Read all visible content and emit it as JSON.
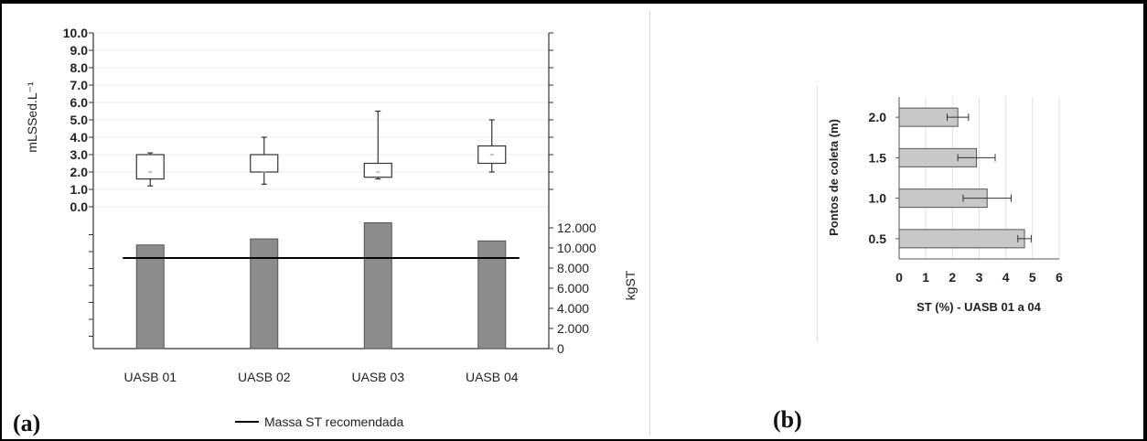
{
  "panel_labels": {
    "a": "(a)",
    "b": "(b)"
  },
  "colors": {
    "bar": "#8c8c8c",
    "box": "#ffffff",
    "line": "#000000",
    "hbar": "#c8c8c8"
  },
  "chart_data": [
    {
      "id": "a",
      "type": "bar",
      "categories": [
        "UASB 01",
        "UASB 02",
        "UASB 03",
        "UASB 04"
      ],
      "series": [
        {
          "values": [
            10300,
            10900,
            12500,
            10700
          ]
        },
        {
          "name": "Massa ST recomendada",
          "type": "line",
          "values": [
            9000,
            9000,
            9000,
            9000
          ]
        }
      ],
      "boxplot": {
        "ylabel": "mLSSed.L⁻¹",
        "ylim": [
          0,
          10
        ],
        "ticks": [
          "0.0",
          "1.0",
          "2.0",
          "3.0",
          "4.0",
          "5.0",
          "6.0",
          "7.0",
          "8.0",
          "9.0",
          "10.0"
        ],
        "boxes": [
          {
            "min": 1.2,
            "q1": 1.6,
            "median": 2.0,
            "q3": 3.0,
            "max": 3.1
          },
          {
            "min": 1.3,
            "q1": 2.0,
            "median": 2.0,
            "q3": 3.0,
            "max": 4.0
          },
          {
            "min": 1.6,
            "q1": 1.7,
            "median": 2.0,
            "q3": 2.5,
            "max": 5.5
          },
          {
            "min": 2.0,
            "q1": 2.5,
            "median": 3.0,
            "q3": 3.5,
            "max": 5.0
          }
        ]
      },
      "ylabel": "kgST",
      "ylim": [
        0,
        13000
      ],
      "ticks": [
        "0",
        "2.000",
        "4.000",
        "6.000",
        "8.000",
        "10.000",
        "12.000"
      ],
      "legend": "Massa ST recomendada",
      "grid": true
    },
    {
      "id": "b",
      "type": "bar",
      "orientation": "horizontal",
      "categories": [
        "0.5",
        "1.0",
        "1.5",
        "2.0"
      ],
      "values": [
        4.7,
        3.3,
        2.9,
        2.2
      ],
      "errors": [
        0.25,
        0.9,
        0.7,
        0.4
      ],
      "xlabel": "ST (%) - UASB 01 a 04",
      "ylabel": "Pontos de coleta (m)",
      "xlim": [
        0,
        6
      ],
      "xticks": [
        "0",
        "1",
        "2",
        "3",
        "4",
        "5",
        "6"
      ],
      "grid": true
    }
  ]
}
